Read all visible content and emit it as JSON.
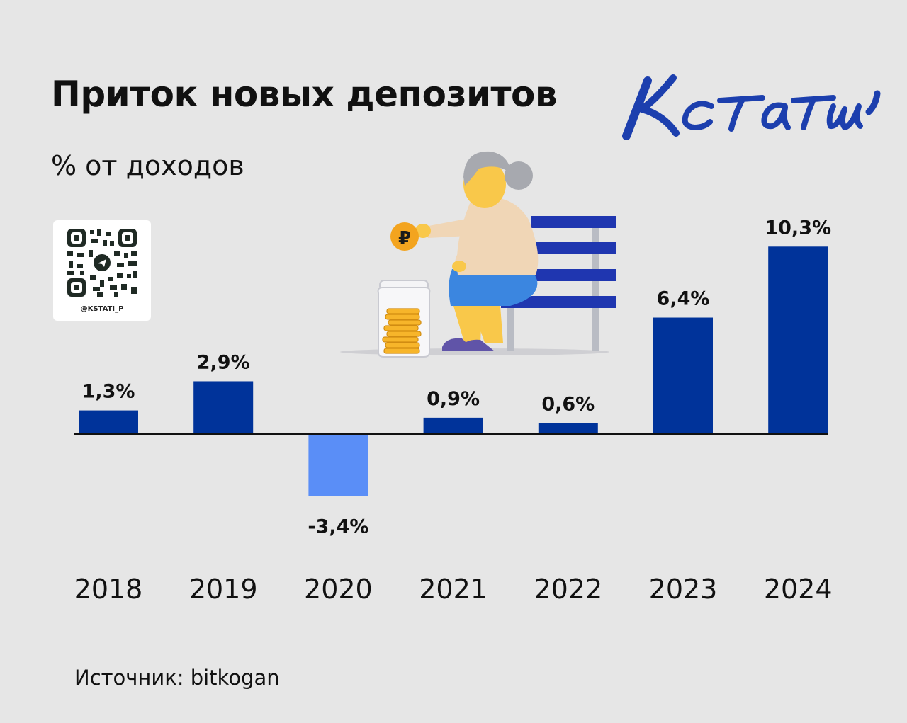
{
  "title": "Приток новых депозитов",
  "subtitle": "% от доходов",
  "brand": "Кстати,",
  "qr_handle": "@KSTATI_P",
  "source": "Источник: bitkogan",
  "colors": {
    "positive_bar": "#00339a",
    "negative_bar": "#5a8ef7",
    "brand_blue": "#1c3fae",
    "background": "#e6e6e6"
  },
  "chart_data": {
    "type": "bar",
    "categories": [
      "2018",
      "2019",
      "2020",
      "2021",
      "2022",
      "2023",
      "2024"
    ],
    "values": [
      1.3,
      2.9,
      -3.4,
      0.9,
      0.6,
      6.4,
      10.3
    ],
    "data_labels": [
      "1,3%",
      "2,9%",
      "-3,4%",
      "0,9%",
      "0,6%",
      "6,4%",
      "10,3%"
    ],
    "title": "Приток новых депозитов",
    "subtitle": "% от доходов",
    "grid": false,
    "legend": "none"
  }
}
